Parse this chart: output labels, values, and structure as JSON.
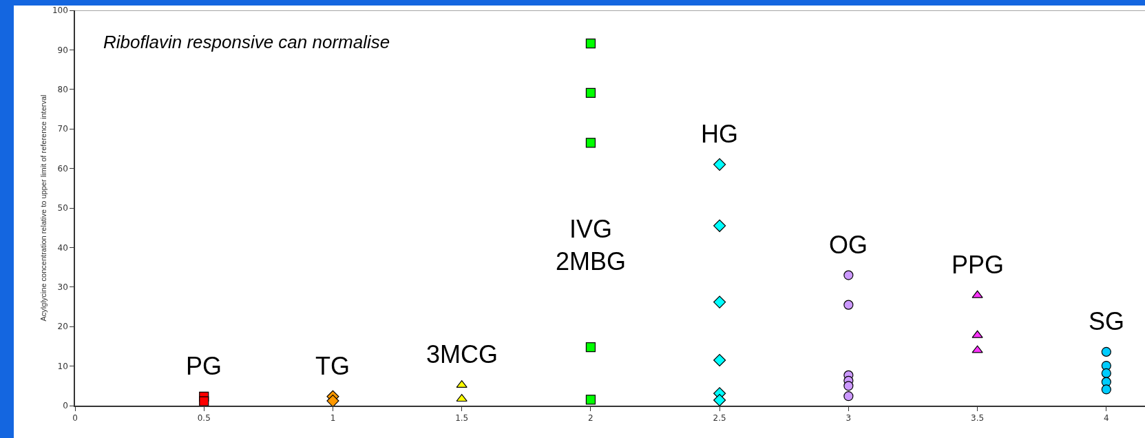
{
  "chart_data": {
    "type": "scatter",
    "ylabel": "Acylglycine concentration relative to upper limit of reference interval",
    "xlim": [
      0,
      4.15
    ],
    "xticks": [
      0,
      0.5,
      1,
      1.5,
      2,
      2.5,
      3,
      3.5,
      4
    ],
    "ylim": [
      0,
      100
    ],
    "yticks": [
      0,
      10,
      20,
      30,
      40,
      50,
      60,
      70,
      80,
      90,
      100
    ],
    "grid": false,
    "legend": false,
    "series": [
      {
        "name": "PG",
        "color": "#ff0000",
        "marker": "square",
        "x": [
          0.5,
          0.5
        ],
        "values": [
          2.3,
          1.1
        ]
      },
      {
        "name": "TG",
        "color": "#ff9900",
        "marker": "diamond",
        "x": [
          1,
          1
        ],
        "values": [
          2.3,
          1.2
        ]
      },
      {
        "name": "3MCG",
        "color": "#ffff00",
        "marker": "triangle",
        "x": [
          1.5,
          1.5
        ],
        "values": [
          5.2,
          1.7
        ]
      },
      {
        "name": "IVG 2MBG",
        "color": "#00ff00",
        "marker": "square",
        "x": [
          2,
          2,
          2,
          2,
          2
        ],
        "values": [
          91.6,
          79.1,
          66.5,
          14.8,
          1.5
        ]
      },
      {
        "name": "HG",
        "color": "#00ffff",
        "marker": "diamond",
        "x": [
          2.5,
          2.5,
          2.5,
          2.5,
          2.5,
          2.5
        ],
        "values": [
          61,
          45.5,
          26.2,
          11.5,
          3.1,
          1.4
        ]
      },
      {
        "name": "OG",
        "color": "#cc99ff",
        "marker": "circle",
        "x": [
          3,
          3,
          3,
          3,
          3,
          3
        ],
        "values": [
          33,
          25.5,
          7.7,
          6.3,
          5,
          2.4
        ]
      },
      {
        "name": "PPG",
        "color": "#ff33ff",
        "marker": "triangle",
        "x": [
          3.5,
          3.5,
          3.5
        ],
        "values": [
          27.9,
          17.8,
          14
        ]
      },
      {
        "name": "SG",
        "color": "#00ccff",
        "marker": "circle",
        "x": [
          4,
          4,
          4,
          4,
          4
        ],
        "values": [
          13.6,
          10.1,
          8.2,
          6,
          4.1
        ]
      }
    ],
    "annotations": [
      "Riboflavin responsive can normalise"
    ]
  }
}
